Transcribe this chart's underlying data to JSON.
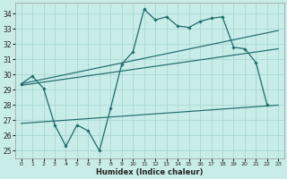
{
  "xlabel": "Humidex (Indice chaleur)",
  "bg_color": "#c8ece8",
  "line_color": "#1e6b6b",
  "grid_color": "#a8d8d4",
  "xlim": [
    -0.5,
    23.5
  ],
  "ylim": [
    24.5,
    34.7
  ],
  "xticks": [
    0,
    1,
    2,
    3,
    4,
    5,
    6,
    7,
    8,
    9,
    10,
    11,
    12,
    13,
    14,
    15,
    16,
    17,
    18,
    19,
    20,
    21,
    22,
    23
  ],
  "yticks": [
    25,
    26,
    27,
    28,
    29,
    30,
    31,
    32,
    33,
    34
  ],
  "jagged_x": [
    0,
    1,
    2,
    3,
    4,
    5,
    6,
    7,
    8,
    9,
    10,
    11,
    12,
    13,
    14,
    15,
    16,
    17,
    18,
    19,
    20,
    21,
    22
  ],
  "jagged_y": [
    29.4,
    29.9,
    29.1,
    26.7,
    25.3,
    26.7,
    26.3,
    25.0,
    27.8,
    30.7,
    31.5,
    34.3,
    33.6,
    33.8,
    33.2,
    33.1,
    33.5,
    33.7,
    33.8,
    31.8,
    31.7,
    30.8,
    28.0
  ],
  "line1_x": [
    0,
    23
  ],
  "line1_y": [
    29.4,
    32.9
  ],
  "line2_x": [
    0,
    23
  ],
  "line2_y": [
    29.3,
    31.7
  ],
  "line3_x": [
    0,
    23
  ],
  "line3_y": [
    26.8,
    28.0
  ]
}
